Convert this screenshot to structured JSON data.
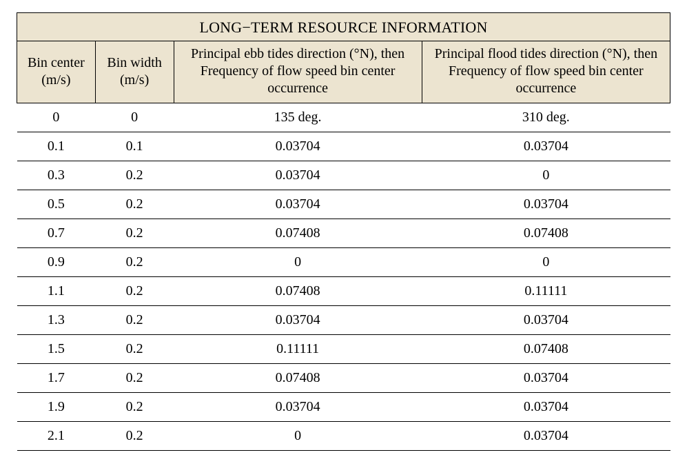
{
  "type": "table",
  "background_color": "#ffffff",
  "header_bg_color": "#ece4d0",
  "border_color": "#000000",
  "text_color": "#000000",
  "font_family": "Times New Roman",
  "title_fontsize": 22,
  "header_fontsize": 20,
  "cell_fontsize": 20,
  "column_widths_pct": [
    12,
    12,
    38,
    38
  ],
  "title": "LONG−TERM RESOURCE INFORMATION",
  "columns": [
    "Bin center (m/s)",
    "Bin width (m/s)",
    "Principal ebb tides direction (°N), then Frequency of flow speed bin center occurrence",
    "Principal flood tides direction (°N), then Frequency of flow speed bin center occurrence"
  ],
  "rows": [
    {
      "c0": "0",
      "c1": "0",
      "c2": "135 deg.",
      "c3": "310 deg."
    },
    {
      "c0": "0.1",
      "c1": "0.1",
      "c2": "0.03704",
      "c3": "0.03704"
    },
    {
      "c0": "0.3",
      "c1": "0.2",
      "c2": "0.03704",
      "c3": "0"
    },
    {
      "c0": "0.5",
      "c1": "0.2",
      "c2": "0.03704",
      "c3": "0.03704"
    },
    {
      "c0": "0.7",
      "c1": "0.2",
      "c2": "0.07408",
      "c3": "0.07408"
    },
    {
      "c0": "0.9",
      "c1": "0.2",
      "c2": "0",
      "c3": "0"
    },
    {
      "c0": "1.1",
      "c1": "0.2",
      "c2": "0.07408",
      "c3": "0.11111"
    },
    {
      "c0": "1.3",
      "c1": "0.2",
      "c2": "0.03704",
      "c3": "0.03704"
    },
    {
      "c0": "1.5",
      "c1": "0.2",
      "c2": "0.11111",
      "c3": "0.07408"
    },
    {
      "c0": "1.7",
      "c1": "0.2",
      "c2": "0.07408",
      "c3": "0.03704"
    },
    {
      "c0": "1.9",
      "c1": "0.2",
      "c2": "0.03704",
      "c3": "0.03704"
    },
    {
      "c0": "2.1",
      "c1": "0.2",
      "c2": "0",
      "c3": "0.03704"
    }
  ]
}
